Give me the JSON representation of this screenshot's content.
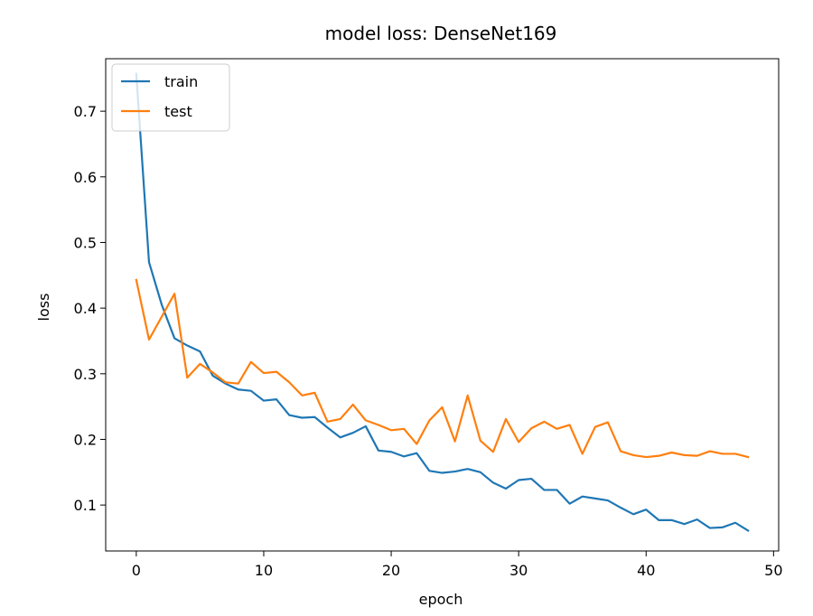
{
  "chart_data": {
    "type": "line",
    "title": "model loss: DenseNet169",
    "xlabel": "epoch",
    "ylabel": "loss",
    "xlim": [
      -2.4,
      50.4
    ],
    "ylim": [
      0.03,
      0.78
    ],
    "xticks": [
      0,
      10,
      20,
      30,
      40,
      50
    ],
    "yticks": [
      0.1,
      0.2,
      0.3,
      0.4,
      0.5,
      0.6,
      0.7
    ],
    "grid": false,
    "legend": "upper-left",
    "x": [
      0,
      1,
      2,
      3,
      4,
      5,
      6,
      7,
      8,
      9,
      10,
      11,
      12,
      13,
      14,
      15,
      16,
      17,
      18,
      19,
      20,
      21,
      22,
      23,
      24,
      25,
      26,
      27,
      28,
      29,
      30,
      31,
      32,
      33,
      34,
      35,
      36,
      37,
      38,
      39,
      40,
      41,
      42,
      43,
      44,
      45,
      46,
      47,
      48
    ],
    "series": [
      {
        "name": "train",
        "color": "#1f77b4",
        "values": [
          0.757,
          0.47,
          0.405,
          0.354,
          0.343,
          0.334,
          0.297,
          0.285,
          0.276,
          0.274,
          0.259,
          0.261,
          0.237,
          0.233,
          0.234,
          0.218,
          0.203,
          0.21,
          0.22,
          0.183,
          0.181,
          0.174,
          0.179,
          0.152,
          0.149,
          0.151,
          0.155,
          0.15,
          0.134,
          0.125,
          0.138,
          0.14,
          0.123,
          0.123,
          0.102,
          0.113,
          0.11,
          0.107,
          0.096,
          0.086,
          0.093,
          0.077,
          0.077,
          0.071,
          0.078,
          0.065,
          0.066,
          0.073,
          0.061
        ]
      },
      {
        "name": "test",
        "color": "#ff7f0e",
        "values": [
          0.443,
          0.352,
          0.387,
          0.422,
          0.294,
          0.315,
          0.302,
          0.287,
          0.285,
          0.318,
          0.301,
          0.303,
          0.287,
          0.267,
          0.271,
          0.227,
          0.231,
          0.253,
          0.229,
          0.222,
          0.214,
          0.216,
          0.193,
          0.229,
          0.249,
          0.197,
          0.267,
          0.198,
          0.181,
          0.231,
          0.196,
          0.217,
          0.227,
          0.216,
          0.222,
          0.178,
          0.219,
          0.226,
          0.182,
          0.176,
          0.173,
          0.175,
          0.18,
          0.176,
          0.175,
          0.182,
          0.178,
          0.178,
          0.173
        ]
      }
    ]
  }
}
